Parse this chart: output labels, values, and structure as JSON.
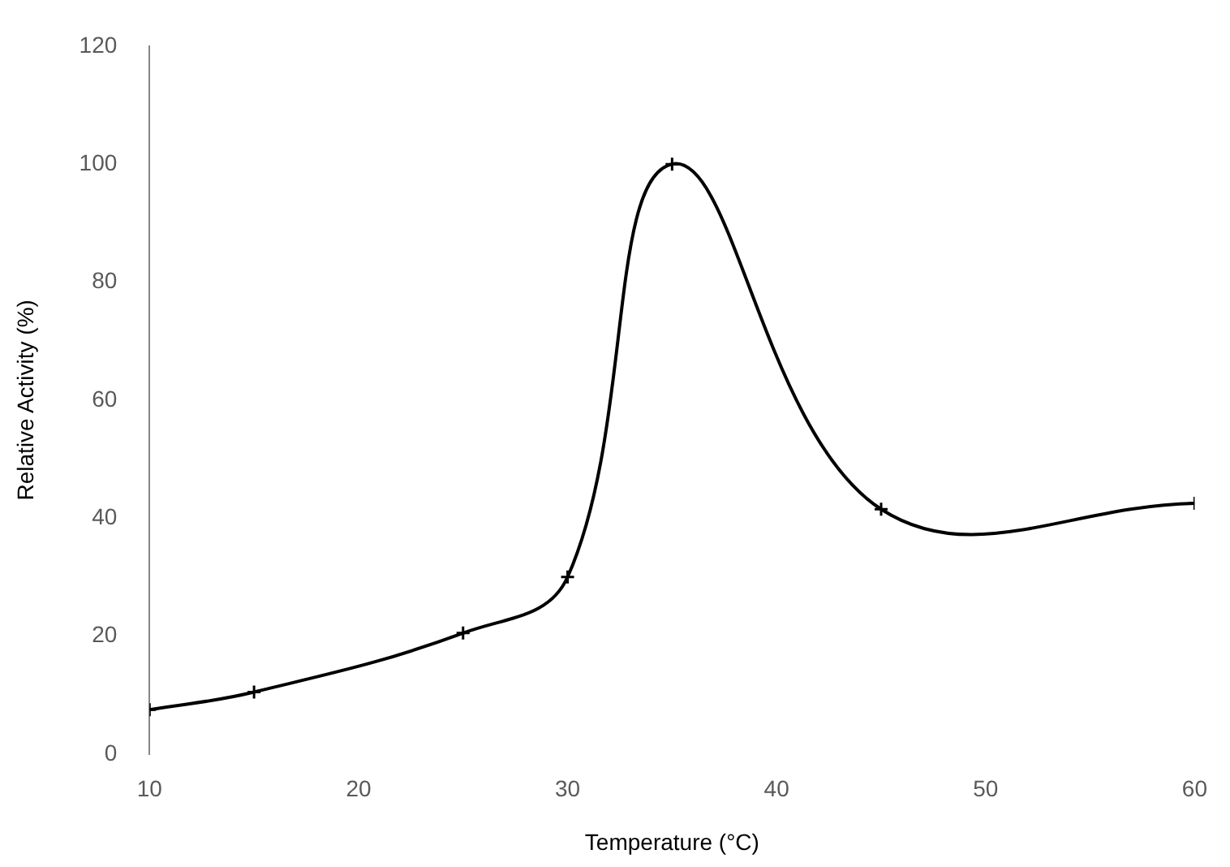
{
  "chart_data": {
    "type": "line",
    "xlabel": "Temperature (°C)",
    "ylabel": "Relative Activity (%)",
    "x": [
      10,
      15,
      25,
      30,
      35,
      45,
      60
    ],
    "series": [
      {
        "color": "#000000",
        "values": [
          7.5,
          10.5,
          20.5,
          30,
          100,
          41.5,
          42.5
        ]
      }
    ],
    "xlim": [
      10,
      60
    ],
    "xticks": [
      10,
      20,
      30,
      40,
      50,
      60
    ],
    "ylim": [
      0,
      120
    ],
    "yticks": [
      0,
      20,
      40,
      60,
      80,
      100,
      120
    ],
    "grid": false,
    "legend": false,
    "marker": "cross",
    "line_style": "solid"
  }
}
